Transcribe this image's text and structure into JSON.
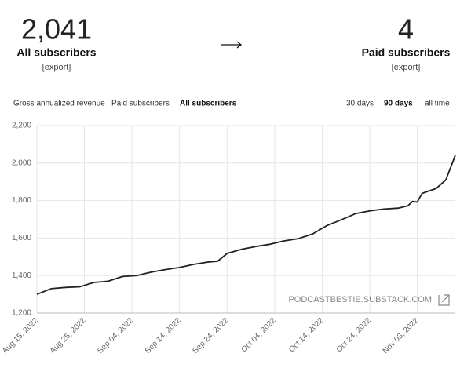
{
  "stats": [
    {
      "value": "2,041",
      "label": "All subscribers",
      "action": "[export]"
    },
    {
      "value": "4",
      "label": "Paid subscribers",
      "action": "[export]"
    }
  ],
  "metric_tabs": [
    "Gross annualized revenue",
    "Paid subscribers",
    "All subscribers"
  ],
  "active_metric": 2,
  "range_tabs": [
    "30 days",
    "90 days",
    "all time"
  ],
  "active_range": 1,
  "watermark": "PODCASTBESTIE.SUBSTACK.COM",
  "chart_data": {
    "type": "line",
    "color": "#222222",
    "grid": true,
    "x": [
      "2022-08-15",
      "2022-08-18",
      "2022-08-21",
      "2022-08-24",
      "2022-08-27",
      "2022-08-30",
      "2022-09-02",
      "2022-09-05",
      "2022-09-08",
      "2022-09-11",
      "2022-09-14",
      "2022-09-17",
      "2022-09-20",
      "2022-09-22",
      "2022-09-24",
      "2022-09-27",
      "2022-09-30",
      "2022-10-03",
      "2022-10-06",
      "2022-10-09",
      "2022-10-12",
      "2022-10-15",
      "2022-10-18",
      "2022-10-21",
      "2022-10-24",
      "2022-10-27",
      "2022-10-30",
      "2022-11-01",
      "2022-11-02",
      "2022-11-03",
      "2022-11-04",
      "2022-11-07",
      "2022-11-09",
      "2022-11-11"
    ],
    "series": [
      {
        "values": [
          1300,
          1330,
          1337,
          1340,
          1363,
          1370,
          1395,
          1400,
          1418,
          1432,
          1443,
          1460,
          1472,
          1476,
          1518,
          1540,
          1555,
          1567,
          1585,
          1597,
          1622,
          1667,
          1697,
          1730,
          1745,
          1755,
          1760,
          1772,
          1795,
          1792,
          1838,
          1865,
          1910,
          2041
        ]
      }
    ],
    "xlim": [
      "2022-08-15",
      "2022-11-11"
    ],
    "ylim": [
      1200,
      2200
    ],
    "yticks": [
      {
        "value": 1200,
        "label": "1,200"
      },
      {
        "value": 1400,
        "label": "1,400"
      },
      {
        "value": 1600,
        "label": "1,600"
      },
      {
        "value": 1800,
        "label": "1,800"
      },
      {
        "value": 2000,
        "label": "2,000"
      },
      {
        "value": 2200,
        "label": "2,200"
      }
    ],
    "xticks": [
      {
        "value": "2022-08-15",
        "label": "Aug 15, 2022"
      },
      {
        "value": "2022-08-25",
        "label": "Aug 25, 2022"
      },
      {
        "value": "2022-09-04",
        "label": "Sep 04, 2022"
      },
      {
        "value": "2022-09-14",
        "label": "Sep 14, 2022"
      },
      {
        "value": "2022-09-24",
        "label": "Sep 24, 2022"
      },
      {
        "value": "2022-10-04",
        "label": "Oct 04, 2022"
      },
      {
        "value": "2022-10-14",
        "label": "Oct 14, 2022"
      },
      {
        "value": "2022-10-24",
        "label": "Oct 24, 2022"
      },
      {
        "value": "2022-11-03",
        "label": "Nov 03, 2022"
      }
    ]
  }
}
